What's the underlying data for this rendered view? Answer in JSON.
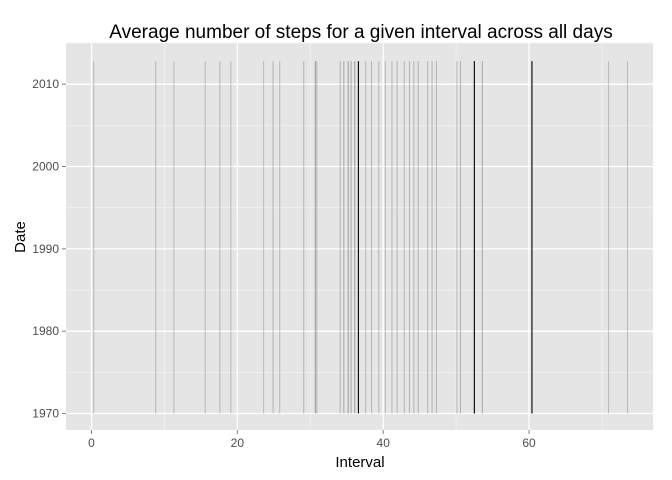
{
  "chart_data": {
    "type": "bar",
    "title": "Average number of steps for a given interval across all days",
    "xlabel": "Interval",
    "ylabel": "Date",
    "xlim": [
      -3.5,
      77
    ],
    "ylim": [
      1968,
      2015
    ],
    "x_ticks": [
      0,
      20,
      40,
      60
    ],
    "y_ticks": [
      1970,
      1980,
      1990,
      2000,
      2010
    ],
    "x_tick_labels": [
      "0",
      "20",
      "40",
      "60"
    ],
    "y_tick_labels": [
      "1970",
      "1980",
      "1990",
      "2000",
      "2010"
    ],
    "baseline": 1970,
    "bar_top": 2012.8,
    "grid": true,
    "colors": {
      "panel": "#e5e5e5",
      "grid_major": "#ffffff",
      "grid_minor": "#f2f2f2",
      "tick_mark": "#7f7f7f"
    },
    "series": [
      {
        "values": [
          {
            "x": 0.3,
            "shade": 0.18
          },
          {
            "x": 8.8,
            "shade": 0.2
          },
          {
            "x": 11.3,
            "shade": 0.18
          },
          {
            "x": 15.6,
            "shade": 0.18
          },
          {
            "x": 17.6,
            "shade": 0.2
          },
          {
            "x": 19.1,
            "shade": 0.18
          },
          {
            "x": 23.6,
            "shade": 0.18
          },
          {
            "x": 24.9,
            "shade": 0.2
          },
          {
            "x": 25.8,
            "shade": 0.18
          },
          {
            "x": 29.1,
            "shade": 0.2
          },
          {
            "x": 30.7,
            "shade": 0.3
          },
          {
            "x": 30.9,
            "shade": 0.2
          },
          {
            "x": 34.1,
            "shade": 0.2
          },
          {
            "x": 34.6,
            "shade": 0.25
          },
          {
            "x": 35.2,
            "shade": 0.3
          },
          {
            "x": 35.6,
            "shade": 0.25
          },
          {
            "x": 36.1,
            "shade": 0.3
          },
          {
            "x": 36.6,
            "shade": 1.0
          },
          {
            "x": 37.6,
            "shade": 0.2
          },
          {
            "x": 38.4,
            "shade": 0.2
          },
          {
            "x": 39.4,
            "shade": 0.2
          },
          {
            "x": 40.3,
            "shade": 0.18
          },
          {
            "x": 41.2,
            "shade": 0.2
          },
          {
            "x": 41.9,
            "shade": 0.2
          },
          {
            "x": 42.9,
            "shade": 0.2
          },
          {
            "x": 43.6,
            "shade": 0.2
          },
          {
            "x": 44.2,
            "shade": 0.2
          },
          {
            "x": 44.8,
            "shade": 0.22
          },
          {
            "x": 46.1,
            "shade": 0.2
          },
          {
            "x": 46.7,
            "shade": 0.2
          },
          {
            "x": 47.3,
            "shade": 0.2
          },
          {
            "x": 50.1,
            "shade": 0.2
          },
          {
            "x": 50.6,
            "shade": 0.22
          },
          {
            "x": 52.5,
            "shade": 1.0
          },
          {
            "x": 53.6,
            "shade": 0.25
          },
          {
            "x": 60.4,
            "shade": 1.0
          },
          {
            "x": 70.9,
            "shade": 0.18
          },
          {
            "x": 73.5,
            "shade": 0.18
          }
        ]
      }
    ]
  }
}
